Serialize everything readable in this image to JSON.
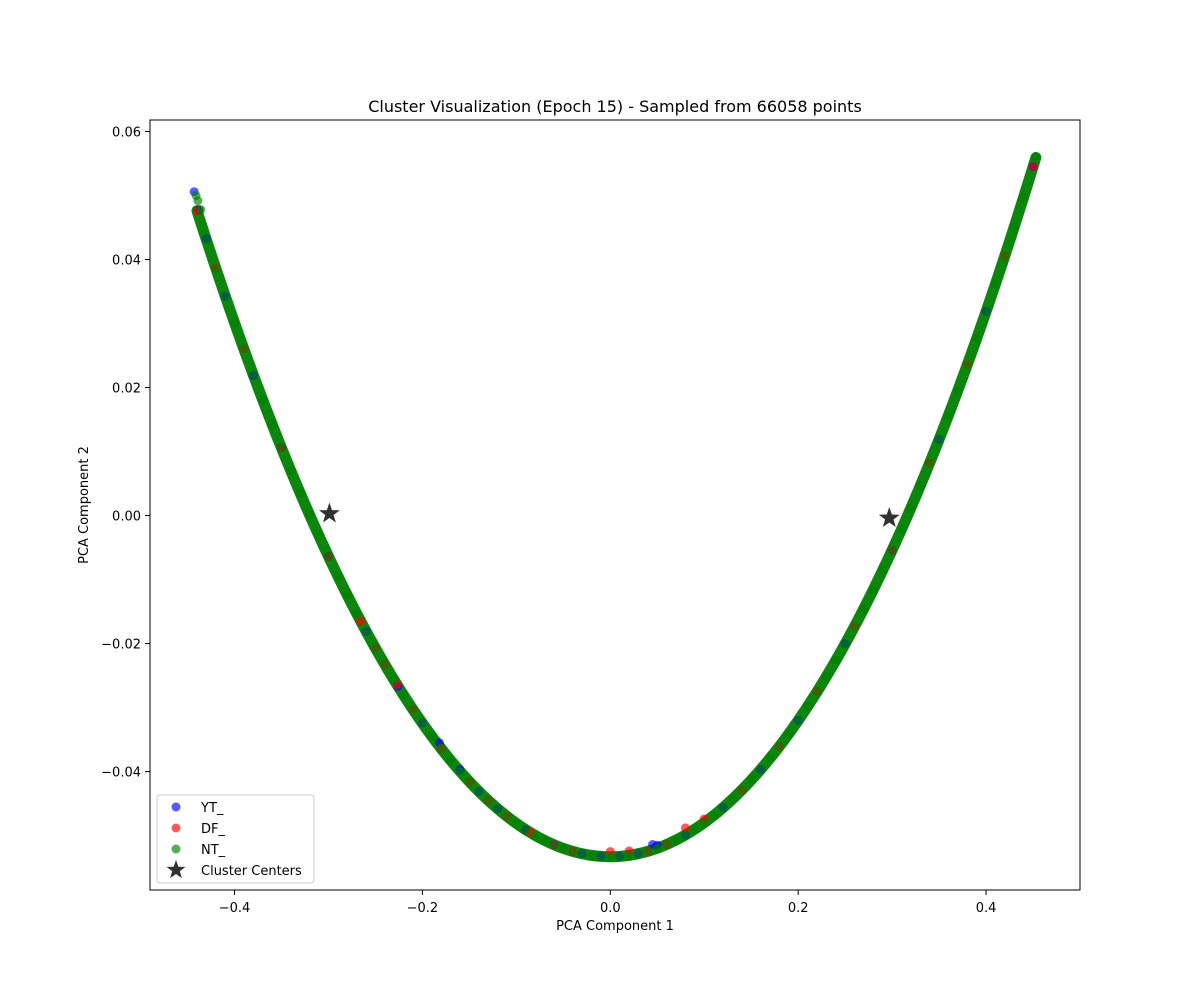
{
  "chart_data": {
    "type": "scatter",
    "title": "Cluster Visualization (Epoch 15) - Sampled from 66058 points",
    "xlabel": "PCA Component 1",
    "ylabel": "PCA Component 2",
    "xlim": [
      -0.49,
      0.5
    ],
    "ylim": [
      -0.0585,
      0.0618
    ],
    "xticks": [
      -0.4,
      -0.2,
      0.0,
      0.2,
      0.4
    ],
    "xtick_labels": [
      "−0.4",
      "−0.2",
      "0.0",
      "0.2",
      "0.4"
    ],
    "yticks": [
      -0.04,
      -0.02,
      0.0,
      0.02,
      0.04,
      0.06
    ],
    "ytick_labels": [
      "−0.04",
      "−0.02",
      "0.00",
      "0.02",
      "0.04",
      "0.06"
    ],
    "grid": false,
    "legend_position": "lower-left",
    "curve": {
      "x_min": -0.44,
      "x_max": 0.453,
      "y_vertex": -0.0533,
      "a_left": 0.5213,
      "a_right": 0.5323
    },
    "series": [
      {
        "name": "YT_",
        "color": "#0000ff",
        "marker": "circle",
        "points": [
          [
            -0.443,
            0.0506
          ],
          [
            -0.438,
            0.0478
          ],
          [
            -0.43,
            0.0432
          ],
          [
            -0.41,
            0.0343
          ],
          [
            -0.38,
            0.0219
          ],
          [
            -0.35,
            0.0106
          ],
          [
            -0.3,
            -0.0064
          ],
          [
            -0.26,
            -0.0181
          ],
          [
            -0.226,
            -0.0267
          ],
          [
            -0.2,
            -0.0324
          ],
          [
            -0.182,
            -0.0355
          ],
          [
            -0.16,
            -0.0397
          ],
          [
            -0.14,
            -0.0431
          ],
          [
            -0.12,
            -0.0458
          ],
          [
            -0.09,
            -0.0491
          ],
          [
            -0.06,
            -0.0514
          ],
          [
            -0.03,
            -0.0528
          ],
          [
            -0.01,
            -0.0532
          ],
          [
            0.01,
            -0.0532
          ],
          [
            0.03,
            -0.0528
          ],
          [
            0.045,
            -0.0514
          ],
          [
            0.05,
            -0.0515
          ],
          [
            0.08,
            -0.0499
          ],
          [
            0.12,
            -0.0456
          ],
          [
            0.16,
            -0.0397
          ],
          [
            0.2,
            -0.032
          ],
          [
            0.25,
            -0.02
          ],
          [
            0.3,
            -0.0054
          ],
          [
            0.35,
            0.0119
          ],
          [
            0.4,
            0.0319
          ],
          [
            0.45,
            0.0545
          ]
        ]
      },
      {
        "name": "DF_",
        "color": "#ff0000",
        "marker": "circle",
        "points": [
          [
            -0.44,
            0.0476
          ],
          [
            -0.42,
            0.0387
          ],
          [
            -0.39,
            0.026
          ],
          [
            -0.35,
            0.0106
          ],
          [
            -0.3,
            -0.0064
          ],
          [
            -0.266,
            -0.0165
          ],
          [
            -0.25,
            -0.0207
          ],
          [
            -0.24,
            -0.0233
          ],
          [
            -0.227,
            -0.0264
          ],
          [
            -0.21,
            -0.0303
          ],
          [
            -0.18,
            -0.0364
          ],
          [
            -0.15,
            -0.0416
          ],
          [
            -0.13,
            -0.0445
          ],
          [
            -0.11,
            -0.047
          ],
          [
            -0.085,
            -0.0495
          ],
          [
            -0.06,
            -0.0514
          ],
          [
            -0.04,
            -0.0525
          ],
          [
            0.0,
            -0.0525
          ],
          [
            0.02,
            -0.0524
          ],
          [
            0.04,
            -0.0525
          ],
          [
            0.06,
            -0.0514
          ],
          [
            0.08,
            -0.0488
          ],
          [
            0.1,
            -0.0474
          ],
          [
            0.14,
            -0.0429
          ],
          [
            0.18,
            -0.0361
          ],
          [
            0.22,
            -0.0275
          ],
          [
            0.26,
            -0.0173
          ],
          [
            0.3,
            -0.0054
          ],
          [
            0.34,
            0.0082
          ],
          [
            0.38,
            0.0236
          ],
          [
            0.42,
            0.0406
          ],
          [
            0.45,
            0.0545
          ]
        ]
      },
      {
        "name": "NT_",
        "color": "#008000",
        "marker": "circle",
        "points": [
          [
            -0.441,
            0.05
          ],
          [
            -0.439,
            0.0492
          ],
          [
            -0.436,
            0.0478
          ],
          [
            -0.43,
            0.0431
          ],
          [
            -0.42,
            0.0386
          ],
          [
            -0.41,
            0.0343
          ],
          [
            -0.4,
            0.0301
          ],
          [
            -0.39,
            0.026
          ],
          [
            -0.38,
            0.022
          ],
          [
            -0.37,
            0.0181
          ],
          [
            -0.36,
            0.0143
          ],
          [
            -0.35,
            0.0106
          ],
          [
            -0.34,
            0.007
          ],
          [
            -0.33,
            0.0035
          ],
          [
            -0.32,
            0.0001
          ],
          [
            -0.31,
            -0.0032
          ],
          [
            -0.3,
            -0.0064
          ],
          [
            -0.29,
            -0.0095
          ],
          [
            -0.28,
            -0.0124
          ],
          [
            -0.27,
            -0.0153
          ],
          [
            -0.26,
            -0.0181
          ],
          [
            -0.25,
            -0.0207
          ],
          [
            -0.24,
            -0.0233
          ],
          [
            -0.23,
            -0.0257
          ],
          [
            -0.22,
            -0.0281
          ],
          [
            -0.21,
            -0.0303
          ],
          [
            -0.2,
            -0.0324
          ],
          [
            -0.19,
            -0.0345
          ],
          [
            -0.18,
            -0.0364
          ],
          [
            -0.17,
            -0.0382
          ],
          [
            -0.16,
            -0.04
          ],
          [
            -0.15,
            -0.0416
          ],
          [
            -0.14,
            -0.0431
          ],
          [
            -0.13,
            -0.0445
          ],
          [
            -0.12,
            -0.0458
          ],
          [
            -0.11,
            -0.047
          ],
          [
            -0.1,
            -0.0481
          ],
          [
            -0.09,
            -0.0491
          ],
          [
            -0.08,
            -0.05
          ],
          [
            -0.07,
            -0.0507
          ],
          [
            -0.06,
            -0.0514
          ],
          [
            -0.05,
            -0.052
          ],
          [
            -0.04,
            -0.0525
          ],
          [
            -0.03,
            -0.0528
          ],
          [
            -0.02,
            -0.0531
          ],
          [
            -0.01,
            -0.0532
          ],
          [
            0.0,
            -0.0533
          ],
          [
            0.01,
            -0.0532
          ],
          [
            0.02,
            -0.0531
          ],
          [
            0.03,
            -0.0528
          ],
          [
            0.04,
            -0.0524
          ],
          [
            0.05,
            -0.052
          ],
          [
            0.06,
            -0.0514
          ],
          [
            0.07,
            -0.0507
          ],
          [
            0.08,
            -0.0499
          ],
          [
            0.09,
            -0.049
          ],
          [
            0.1,
            -0.048
          ],
          [
            0.11,
            -0.0469
          ],
          [
            0.12,
            -0.0456
          ],
          [
            0.13,
            -0.0443
          ],
          [
            0.14,
            -0.0429
          ],
          [
            0.15,
            -0.0413
          ],
          [
            0.16,
            -0.0397
          ],
          [
            0.17,
            -0.0379
          ],
          [
            0.18,
            -0.0361
          ],
          [
            0.19,
            -0.0341
          ],
          [
            0.2,
            -0.032
          ],
          [
            0.21,
            -0.0298
          ],
          [
            0.22,
            -0.0275
          ],
          [
            0.23,
            -0.0251
          ],
          [
            0.24,
            -0.0226
          ],
          [
            0.25,
            -0.02
          ],
          [
            0.26,
            -0.0173
          ],
          [
            0.27,
            -0.0145
          ],
          [
            0.28,
            -0.0116
          ],
          [
            0.29,
            -0.0085
          ],
          [
            0.3,
            -0.0054
          ],
          [
            0.31,
            -0.0021
          ],
          [
            0.32,
            0.0012
          ],
          [
            0.33,
            0.0047
          ],
          [
            0.34,
            0.0082
          ],
          [
            0.35,
            0.0119
          ],
          [
            0.36,
            0.0157
          ],
          [
            0.37,
            0.0196
          ],
          [
            0.38,
            0.0236
          ],
          [
            0.39,
            0.0277
          ],
          [
            0.4,
            0.0319
          ],
          [
            0.41,
            0.0362
          ],
          [
            0.42,
            0.0406
          ],
          [
            0.43,
            0.0451
          ],
          [
            0.44,
            0.0497
          ],
          [
            0.453,
            0.056
          ]
        ]
      },
      {
        "name": "Cluster Centers",
        "color": "#262626",
        "marker": "star",
        "points": [
          [
            -0.299,
            0.0003
          ],
          [
            0.297,
            -0.0004
          ]
        ]
      }
    ]
  }
}
